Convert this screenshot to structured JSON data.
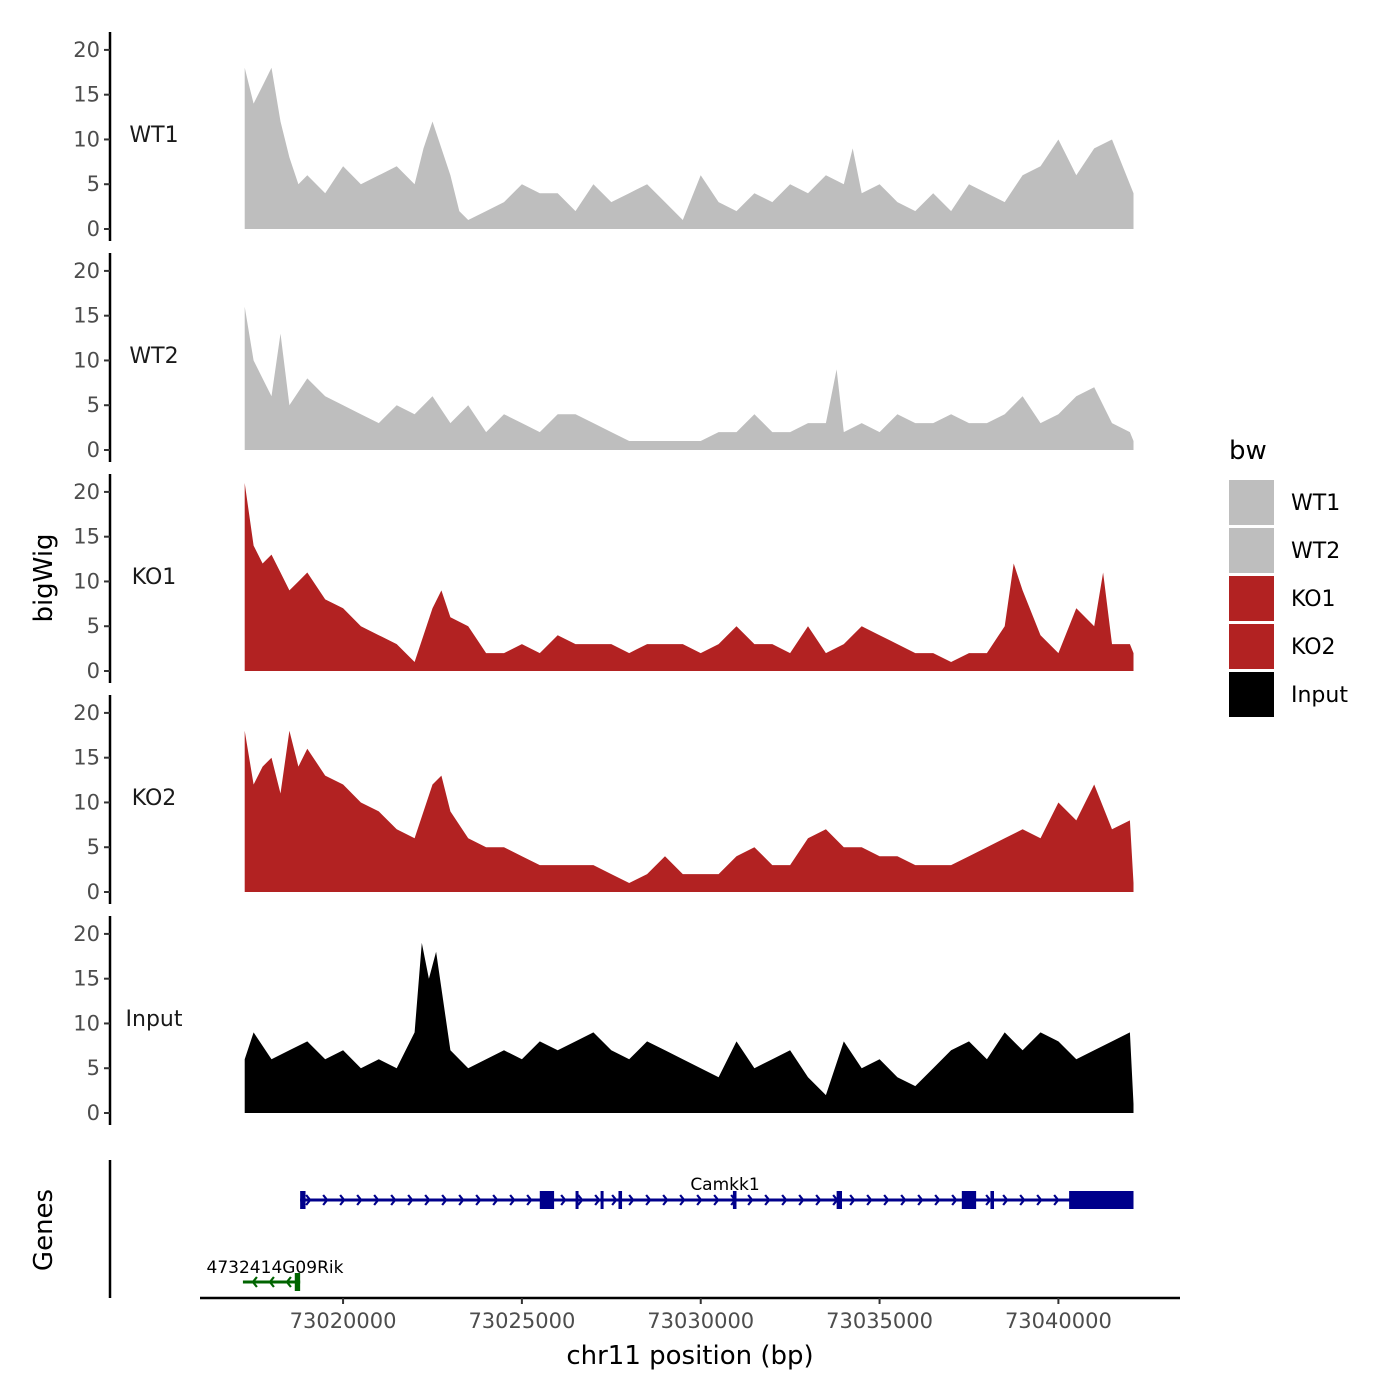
{
  "chart_data": {
    "type": "area",
    "title": "",
    "xlabel": "chr11 position (bp)",
    "ylabel": "bigWig",
    "genes_label": "Genes",
    "xlim": [
      73016000,
      73043400
    ],
    "ylim": [
      0,
      22
    ],
    "x_ticks": [
      73020000,
      73025000,
      73030000,
      73035000,
      73040000
    ],
    "x_tick_labels": [
      "73020000",
      "73025000",
      "73030000",
      "73035000",
      "73040000"
    ],
    "y_ticks": [
      0,
      5,
      10,
      15,
      20
    ],
    "y_tick_labels": [
      "0",
      "5",
      "10",
      "15",
      "20"
    ],
    "legend": {
      "title": "bw",
      "position": "right",
      "entries": [
        {
          "label": "WT1",
          "color": "#bebebe"
        },
        {
          "label": "WT2",
          "color": "#bebebe"
        },
        {
          "label": "KO1",
          "color": "#b22222"
        },
        {
          "label": "KO2",
          "color": "#b22222"
        },
        {
          "label": "Input",
          "color": "#000000"
        }
      ]
    },
    "series": [
      {
        "name": "WT1",
        "color": "#bebebe",
        "x": [
          73017250,
          73017500,
          73017750,
          73018000,
          73018250,
          73018500,
          73018750,
          73019000,
          73019500,
          73020000,
          73020500,
          73021000,
          73021500,
          73022000,
          73022250,
          73022500,
          73023000,
          73023250,
          73023500,
          73024000,
          73024500,
          73025000,
          73025500,
          73026000,
          73026500,
          73027000,
          73027500,
          73028000,
          73028500,
          73029000,
          73029500,
          73030000,
          73030500,
          73031000,
          73031500,
          73032000,
          73032500,
          73033000,
          73033500,
          73034000,
          73034250,
          73034500,
          73035000,
          73035500,
          73036000,
          73036500,
          73037000,
          73037500,
          73038000,
          73038500,
          73039000,
          73039500,
          73040000,
          73040500,
          73041000,
          73041500,
          73042000,
          73042100
        ],
        "values": [
          18,
          14,
          16,
          18,
          12,
          8,
          5,
          6,
          4,
          7,
          5,
          6,
          7,
          5,
          9,
          12,
          6,
          2,
          1,
          2,
          3,
          5,
          4,
          4,
          2,
          5,
          3,
          4,
          5,
          3,
          1,
          6,
          3,
          2,
          4,
          3,
          5,
          4,
          6,
          5,
          9,
          4,
          5,
          3,
          2,
          4,
          2,
          5,
          4,
          3,
          6,
          7,
          10,
          6,
          9,
          10,
          5,
          4
        ]
      },
      {
        "name": "WT2",
        "color": "#bebebe",
        "x": [
          73017250,
          73017500,
          73018000,
          73018250,
          73018500,
          73019000,
          73019500,
          73020000,
          73020500,
          73021000,
          73021500,
          73022000,
          73022500,
          73023000,
          73023500,
          73024000,
          73024500,
          73025000,
          73025500,
          73026000,
          73026500,
          73027000,
          73027500,
          73028000,
          73028500,
          73029000,
          73029500,
          73030000,
          73030500,
          73031000,
          73031500,
          73032000,
          73032500,
          73033000,
          73033500,
          73033800,
          73034000,
          73034500,
          73035000,
          73035500,
          73036000,
          73036500,
          73037000,
          73037500,
          73038000,
          73038500,
          73039000,
          73039500,
          73040000,
          73040500,
          73041000,
          73041500,
          73042000,
          73042100
        ],
        "values": [
          16,
          10,
          6,
          13,
          5,
          8,
          6,
          5,
          4,
          3,
          5,
          4,
          6,
          3,
          5,
          2,
          4,
          3,
          2,
          4,
          4,
          3,
          2,
          1,
          1,
          1,
          1,
          1,
          2,
          2,
          4,
          2,
          2,
          3,
          3,
          9,
          2,
          3,
          2,
          4,
          3,
          3,
          4,
          3,
          3,
          4,
          6,
          3,
          4,
          6,
          7,
          3,
          2,
          1
        ]
      },
      {
        "name": "KO1",
        "color": "#b22222",
        "x": [
          73017250,
          73017500,
          73017750,
          73018000,
          73018250,
          73018500,
          73018750,
          73019000,
          73019500,
          73020000,
          73020500,
          73021000,
          73021500,
          73022000,
          73022500,
          73022750,
          73023000,
          73023500,
          73024000,
          73024500,
          73025000,
          73025500,
          73026000,
          73026500,
          73027000,
          73027500,
          73028000,
          73028500,
          73029000,
          73029500,
          73030000,
          73030500,
          73031000,
          73031500,
          73032000,
          73032500,
          73033000,
          73033500,
          73034000,
          73034500,
          73035000,
          73035500,
          73036000,
          73036500,
          73037000,
          73037500,
          73038000,
          73038500,
          73038750,
          73039000,
          73039500,
          73040000,
          73040500,
          73041000,
          73041250,
          73041500,
          73042000,
          73042100
        ],
        "values": [
          21,
          14,
          12,
          13,
          11,
          9,
          10,
          11,
          8,
          7,
          5,
          4,
          3,
          1,
          7,
          9,
          6,
          5,
          2,
          2,
          3,
          2,
          4,
          3,
          3,
          3,
          2,
          3,
          3,
          3,
          2,
          3,
          5,
          3,
          3,
          2,
          5,
          2,
          3,
          5,
          4,
          3,
          2,
          2,
          1,
          2,
          2,
          5,
          12,
          9,
          4,
          2,
          7,
          5,
          11,
          3,
          3,
          2
        ]
      },
      {
        "name": "KO2",
        "color": "#b22222",
        "x": [
          73017250,
          73017500,
          73017750,
          73018000,
          73018250,
          73018500,
          73018750,
          73019000,
          73019500,
          73020000,
          73020500,
          73021000,
          73021500,
          73022000,
          73022500,
          73022750,
          73023000,
          73023500,
          73024000,
          73024500,
          73025000,
          73025500,
          73026000,
          73026500,
          73027000,
          73027500,
          73028000,
          73028500,
          73029000,
          73029500,
          73030000,
          73030500,
          73031000,
          73031500,
          73032000,
          73032500,
          73033000,
          73033500,
          73034000,
          73034500,
          73035000,
          73035500,
          73036000,
          73036500,
          73037000,
          73037500,
          73038000,
          73038500,
          73039000,
          73039500,
          73040000,
          73040500,
          73041000,
          73041500,
          73042000,
          73042100
        ],
        "values": [
          18,
          12,
          14,
          15,
          11,
          18,
          14,
          16,
          13,
          12,
          10,
          9,
          7,
          6,
          12,
          13,
          9,
          6,
          5,
          5,
          4,
          3,
          3,
          3,
          3,
          2,
          1,
          2,
          4,
          2,
          2,
          2,
          4,
          5,
          3,
          3,
          6,
          7,
          5,
          5,
          4,
          4,
          3,
          3,
          3,
          4,
          5,
          6,
          7,
          6,
          10,
          8,
          12,
          7,
          8,
          1
        ]
      },
      {
        "name": "Input",
        "color": "#000000",
        "x": [
          73017250,
          73017500,
          73018000,
          73018500,
          73019000,
          73019500,
          73020000,
          73020500,
          73021000,
          73021500,
          73022000,
          73022200,
          73022400,
          73022600,
          73023000,
          73023500,
          73024000,
          73024500,
          73025000,
          73025500,
          73026000,
          73026500,
          73027000,
          73027500,
          73028000,
          73028500,
          73029000,
          73029500,
          73030000,
          73030500,
          73031000,
          73031500,
          73032000,
          73032500,
          73033000,
          73033500,
          73034000,
          73034500,
          73035000,
          73035500,
          73036000,
          73036500,
          73037000,
          73037500,
          73038000,
          73038500,
          73039000,
          73039500,
          73040000,
          73040500,
          73041000,
          73041500,
          73042000,
          73042100
        ],
        "values": [
          6,
          9,
          6,
          7,
          8,
          6,
          7,
          5,
          6,
          5,
          9,
          19,
          15,
          18,
          7,
          5,
          6,
          7,
          6,
          8,
          7,
          8,
          9,
          7,
          6,
          8,
          7,
          6,
          5,
          4,
          8,
          5,
          6,
          7,
          4,
          2,
          8,
          5,
          6,
          4,
          3,
          5,
          7,
          8,
          6,
          9,
          7,
          9,
          8,
          6,
          7,
          8,
          9,
          1
        ]
      }
    ],
    "panel_labels": [
      "WT1",
      "WT2",
      "KO1",
      "KO2",
      "Input"
    ],
    "genes": [
      {
        "name": "Camkk1",
        "strand": "+",
        "start": 73018800,
        "end": 73042100,
        "color": "#00008b",
        "exons": [
          [
            73018800,
            73018950
          ],
          [
            73025500,
            73025900
          ],
          [
            73026500,
            73026580
          ],
          [
            73027200,
            73027280
          ],
          [
            73027700,
            73027800
          ],
          [
            73030900,
            73031000
          ],
          [
            73033800,
            73033950
          ],
          [
            73037300,
            73037700
          ],
          [
            73038100,
            73038200
          ],
          [
            73040300,
            73042100
          ]
        ]
      },
      {
        "name": "4732414G09Rik",
        "strand": "-",
        "start": 73017200,
        "end": 73018800,
        "color": "#006400",
        "exons": [
          [
            73018650,
            73018800
          ]
        ]
      }
    ]
  }
}
